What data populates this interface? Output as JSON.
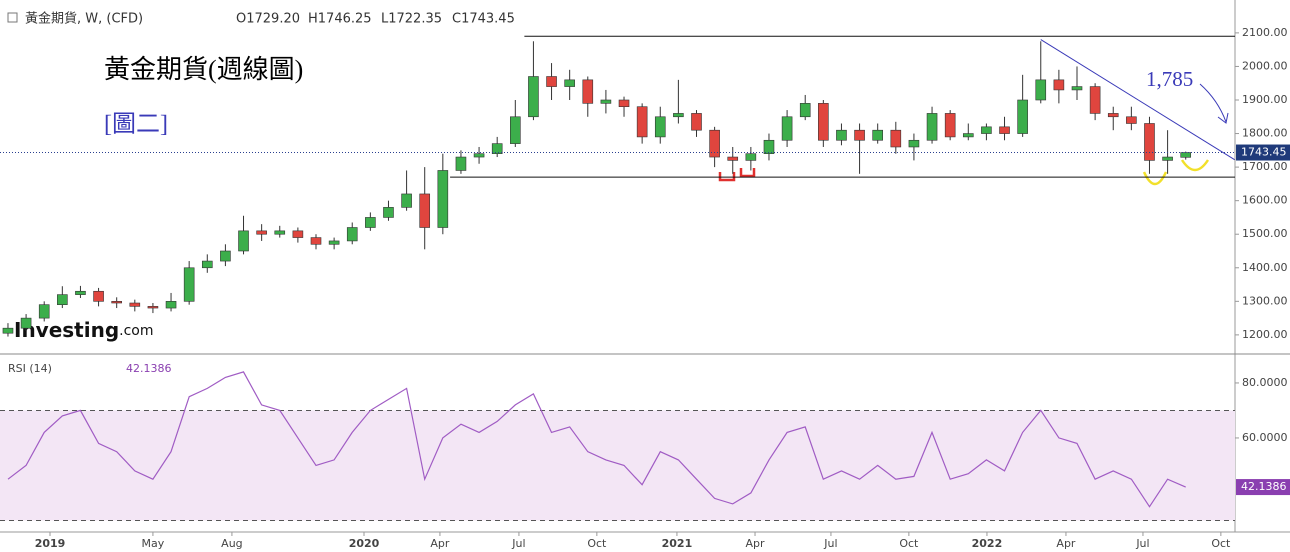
{
  "chart_data": [
    {
      "type": "candlestick",
      "title": "黃金期貨, W, (CFD)",
      "quote": [
        "O1729.20",
        "H1746.25",
        "L1722.35",
        "C1743.45"
      ],
      "heading": "黃金期貨(週線圖)",
      "figure_label": "[圖二]",
      "target_label": "1,785",
      "logo": "Investing",
      "logo_suffix": ".com",
      "colors": {
        "up": "#3cae4b",
        "down": "#e0453e"
      },
      "open": [
        1205,
        1220,
        1250,
        1290,
        1320,
        1330,
        1300,
        1295,
        1285,
        1280,
        1300,
        1400,
        1420,
        1450,
        1510,
        1500,
        1510,
        1490,
        1470,
        1480,
        1520,
        1550,
        1580,
        1620,
        1520,
        1690,
        1730,
        1740,
        1770,
        1850,
        1970,
        1940,
        1960,
        1890,
        1900,
        1880,
        1790,
        1850,
        1860,
        1810,
        1730,
        1720,
        1740,
        1780,
        1850,
        1890,
        1780,
        1810,
        1780,
        1810,
        1760,
        1780,
        1860,
        1790,
        1800,
        1820,
        1800,
        1900,
        1960,
        1930,
        1940,
        1860,
        1850,
        1830,
        1720,
        1729.2
      ],
      "high": [
        1235,
        1262,
        1300,
        1345,
        1346,
        1340,
        1312,
        1305,
        1295,
        1325,
        1420,
        1440,
        1470,
        1555,
        1530,
        1525,
        1520,
        1500,
        1490,
        1535,
        1565,
        1600,
        1690,
        1700,
        1740,
        1750,
        1760,
        1790,
        1900,
        2075,
        2010,
        1990,
        1970,
        1930,
        1910,
        1890,
        1880,
        1960,
        1870,
        1820,
        1760,
        1760,
        1800,
        1870,
        1915,
        1900,
        1830,
        1830,
        1830,
        1835,
        1800,
        1880,
        1870,
        1830,
        1830,
        1850,
        1975,
        2075,
        1990,
        2000,
        1950,
        1880,
        1880,
        1850,
        1810,
        1746.25
      ],
      "low": [
        1195,
        1212,
        1240,
        1280,
        1310,
        1285,
        1280,
        1270,
        1265,
        1270,
        1290,
        1385,
        1405,
        1440,
        1480,
        1490,
        1475,
        1455,
        1455,
        1470,
        1510,
        1540,
        1570,
        1455,
        1500,
        1680,
        1710,
        1730,
        1760,
        1840,
        1900,
        1900,
        1850,
        1860,
        1850,
        1770,
        1770,
        1830,
        1790,
        1700,
        1680,
        1690,
        1720,
        1760,
        1840,
        1760,
        1765,
        1680,
        1770,
        1740,
        1720,
        1770,
        1780,
        1780,
        1780,
        1780,
        1790,
        1890,
        1890,
        1900,
        1840,
        1810,
        1810,
        1680,
        1680,
        1722.35
      ],
      "close": [
        1220,
        1250,
        1290,
        1320,
        1330,
        1300,
        1295,
        1285,
        1280,
        1300,
        1400,
        1420,
        1450,
        1510,
        1500,
        1510,
        1490,
        1470,
        1480,
        1520,
        1550,
        1580,
        1620,
        1520,
        1690,
        1730,
        1740,
        1770,
        1850,
        1970,
        1940,
        1960,
        1890,
        1900,
        1880,
        1790,
        1850,
        1860,
        1810,
        1730,
        1720,
        1740,
        1780,
        1850,
        1890,
        1780,
        1810,
        1780,
        1810,
        1760,
        1780,
        1860,
        1790,
        1800,
        1820,
        1800,
        1900,
        1960,
        1930,
        1940,
        1860,
        1850,
        1830,
        1720,
        1730,
        1743.45
      ],
      "levels": [
        {
          "value": 2090,
          "from": 28.5
        },
        {
          "value": 1670,
          "from": 24.4
        }
      ],
      "trendline": {
        "x": [
          57,
          67.7
        ],
        "y": [
          2080,
          1722
        ]
      },
      "xlim": [
        -0.44,
        67.72
      ],
      "xticks": [
        {
          "value": 2.32,
          "label": "2019"
        },
        {
          "value": 8.0,
          "label": "May"
        },
        {
          "value": 12.36,
          "label": "Aug"
        },
        {
          "value": 19.65,
          "label": "2020"
        },
        {
          "value": 23.84,
          "label": "Apr"
        },
        {
          "value": 28.2,
          "label": "Jul"
        },
        {
          "value": 32.5,
          "label": "Oct"
        },
        {
          "value": 36.92,
          "label": "2021"
        },
        {
          "value": 41.23,
          "label": "Apr"
        },
        {
          "value": 45.42,
          "label": "Jul"
        },
        {
          "value": 49.72,
          "label": "Oct"
        },
        {
          "value": 54.03,
          "label": "2022"
        },
        {
          "value": 58.39,
          "label": "Apr"
        },
        {
          "value": 62.64,
          "label": "Jul"
        },
        {
          "value": 66.94,
          "label": "Oct"
        }
      ],
      "ylim": [
        1149,
        2198
      ],
      "yticks": [
        {
          "value": 1200,
          "label": "1200.00"
        },
        {
          "value": 1300,
          "label": "1300.00"
        },
        {
          "value": 1400,
          "label": "1400.00"
        },
        {
          "value": 1500,
          "label": "1500.00"
        },
        {
          "value": 1600,
          "label": "1600.00"
        },
        {
          "value": 1700,
          "label": "1700.00"
        },
        {
          "value": 1800,
          "label": "1800.00"
        },
        {
          "value": 1900,
          "label": "1900.00"
        },
        {
          "value": 2000,
          "label": "2000.00"
        },
        {
          "value": 2100,
          "label": "2100.00"
        }
      ]
    },
    {
      "type": "line",
      "title": "RSI (14)",
      "color": "#a05cc4",
      "band": [
        30,
        70
      ],
      "band_color": "#f3e6f5",
      "values": [
        45,
        50,
        62,
        68,
        70,
        58,
        55,
        48,
        45,
        55,
        75,
        78,
        82,
        84,
        72,
        70,
        60,
        50,
        52,
        62,
        70,
        74,
        78,
        45,
        60,
        65,
        62,
        66,
        72,
        76,
        62,
        64,
        55,
        52,
        50,
        43,
        55,
        52,
        45,
        38,
        36,
        40,
        52,
        62,
        64,
        45,
        48,
        45,
        50,
        45,
        46,
        62,
        45,
        47,
        52,
        48,
        62,
        70,
        60,
        58,
        45,
        48,
        45,
        35,
        45,
        42.1386
      ],
      "ylim": [
        25.8,
        89.8
      ],
      "yticks": [
        {
          "value": 60,
          "label": "60.0000"
        },
        {
          "value": 80,
          "label": "80.0000"
        }
      ]
    }
  ]
}
